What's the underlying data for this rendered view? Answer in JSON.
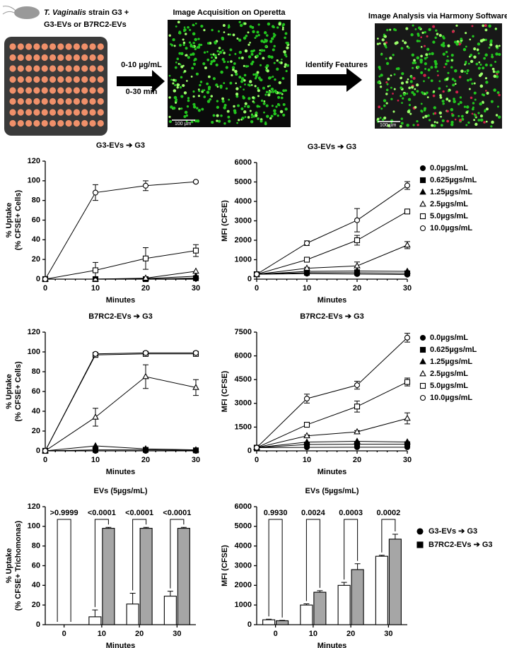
{
  "schematic": {
    "strain_italic": "T. Vaginalis",
    "strain_rest": " strain G3 +",
    "strain_line2": "G3-EVs or B7RC2-EVs",
    "dose": "0-10 µg/mL",
    "time": "0-30 min",
    "acquisition": "Image Acquisition on Operetta",
    "identify": "Identify Features",
    "analysis": "Image Analysis via Harmony Software",
    "scale_bar": "100 µm"
  },
  "chart_data": [
    {
      "type": "line",
      "title": "G3-EVs ➔ G3",
      "ylabel": [
        "% Uptake",
        "(% CFSE+ Cells)"
      ],
      "xlabel": "Minutes",
      "x": [
        0,
        10,
        20,
        30
      ],
      "xlim": [
        0,
        30
      ],
      "xticks": [
        0,
        10,
        20,
        30
      ],
      "ylim": [
        0,
        120
      ],
      "yticks": [
        0,
        20,
        40,
        60,
        80,
        100,
        120
      ],
      "series": [
        {
          "marker": "circle",
          "filled": true,
          "color": "#000000",
          "values": [
            0,
            0,
            0,
            0.5
          ]
        },
        {
          "marker": "square",
          "filled": true,
          "color": "#000000",
          "values": [
            0,
            0,
            0,
            1
          ]
        },
        {
          "marker": "triangle",
          "filled": true,
          "color": "#000000",
          "values": [
            0,
            0,
            0.5,
            3
          ]
        },
        {
          "marker": "triangle",
          "filled": false,
          "color": "#000000",
          "values": [
            0,
            0,
            1,
            8
          ]
        },
        {
          "marker": "square",
          "filled": false,
          "color": "#000000",
          "values": [
            0,
            9,
            21,
            29
          ],
          "errors": [
            0,
            8,
            11,
            6
          ]
        },
        {
          "marker": "circle",
          "filled": false,
          "color": "#000000",
          "values": [
            0,
            88,
            95,
            99
          ],
          "errors": [
            0,
            8,
            5,
            1
          ]
        }
      ]
    },
    {
      "type": "line",
      "title": "G3-EVs ➔ G3",
      "ylabel": [
        "MFI (CFSE)"
      ],
      "xlabel": "Minutes",
      "legend": "right",
      "x": [
        0,
        10,
        20,
        30
      ],
      "xlim": [
        0,
        30
      ],
      "xticks": [
        0,
        10,
        20,
        30
      ],
      "ylim": [
        0,
        6000
      ],
      "yticks": [
        0,
        1000,
        2000,
        3000,
        4000,
        5000,
        6000
      ],
      "series": [
        {
          "name": "0.0µgs/mL",
          "marker": "circle",
          "filled": true,
          "color": "#000000",
          "values": [
            250,
            280,
            260,
            230
          ]
        },
        {
          "name": "0.625µgs/mL",
          "marker": "square",
          "filled": true,
          "color": "#000000",
          "values": [
            250,
            330,
            330,
            300
          ]
        },
        {
          "name": "1.25µgs/mL",
          "marker": "triangle",
          "filled": true,
          "color": "#000000",
          "values": [
            250,
            400,
            420,
            400
          ]
        },
        {
          "name": "2.5µgs/mL",
          "marker": "triangle",
          "filled": false,
          "color": "#000000",
          "values": [
            250,
            560,
            680,
            1750
          ],
          "errors": [
            0,
            50,
            200,
            180
          ]
        },
        {
          "name": "5.0µgs/mL",
          "marker": "square",
          "filled": false,
          "color": "#000000",
          "values": [
            250,
            1000,
            2000,
            3480
          ],
          "errors": [
            0,
            50,
            250,
            50
          ]
        },
        {
          "name": "10.0µgs/mL",
          "marker": "circle",
          "filled": false,
          "color": "#000000",
          "values": [
            250,
            1850,
            3030,
            4820
          ],
          "errors": [
            0,
            120,
            600,
            200
          ]
        }
      ]
    },
    {
      "type": "line",
      "title": "B7RC2-EVs ➔ G3",
      "ylabel": [
        "% Uptake",
        "(% CFSE+ Cells)"
      ],
      "xlabel": "Minutes",
      "x": [
        0,
        10,
        20,
        30
      ],
      "xlim": [
        0,
        30
      ],
      "xticks": [
        0,
        10,
        20,
        30
      ],
      "ylim": [
        0,
        120
      ],
      "yticks": [
        0,
        20,
        40,
        60,
        80,
        100,
        120
      ],
      "series": [
        {
          "marker": "circle",
          "filled": true,
          "color": "#000000",
          "values": [
            0,
            0,
            0,
            0
          ]
        },
        {
          "marker": "square",
          "filled": true,
          "color": "#000000",
          "values": [
            0,
            1,
            1,
            0.5
          ]
        },
        {
          "marker": "triangle",
          "filled": true,
          "color": "#000000",
          "values": [
            0,
            5,
            2,
            1
          ]
        },
        {
          "marker": "triangle",
          "filled": false,
          "color": "#000000",
          "values": [
            0,
            34,
            75,
            64
          ],
          "errors": [
            0,
            9,
            12,
            8
          ]
        },
        {
          "marker": "square",
          "filled": false,
          "color": "#000000",
          "values": [
            0,
            97,
            98,
            98
          ]
        },
        {
          "marker": "circle",
          "filled": false,
          "color": "#000000",
          "values": [
            0,
            98,
            99,
            99
          ]
        }
      ]
    },
    {
      "type": "line",
      "title": "B7RC2-EVs ➔ G3",
      "ylabel": [
        "MFI (CFSE)"
      ],
      "xlabel": "Minutes",
      "legend": "right",
      "x": [
        0,
        10,
        20,
        30
      ],
      "xlim": [
        0,
        30
      ],
      "xticks": [
        0,
        10,
        20,
        30
      ],
      "ylim": [
        0,
        7500
      ],
      "yticks": [
        0,
        1500,
        3000,
        4500,
        6000,
        7500
      ],
      "series": [
        {
          "name": "0.0µgs/mL",
          "marker": "circle",
          "filled": true,
          "color": "#000000",
          "values": [
            200,
            220,
            230,
            230
          ]
        },
        {
          "name": "0.625µgs/mL",
          "marker": "square",
          "filled": true,
          "color": "#000000",
          "values": [
            200,
            400,
            420,
            420
          ]
        },
        {
          "name": "1.25µgs/mL",
          "marker": "triangle",
          "filled": true,
          "color": "#000000",
          "values": [
            200,
            550,
            600,
            560
          ]
        },
        {
          "name": "2.5µgs/mL",
          "marker": "triangle",
          "filled": false,
          "color": "#000000",
          "values": [
            200,
            950,
            1200,
            2050
          ],
          "errors": [
            0,
            50,
            80,
            350
          ]
        },
        {
          "name": "5.0µgs/mL",
          "marker": "square",
          "filled": false,
          "color": "#000000",
          "values": [
            200,
            1650,
            2800,
            4350
          ],
          "errors": [
            0,
            60,
            350,
            250
          ]
        },
        {
          "name": "10.0µgs/mL",
          "marker": "circle",
          "filled": false,
          "color": "#000000",
          "values": [
            200,
            3300,
            4150,
            7150
          ],
          "errors": [
            0,
            280,
            250,
            280
          ]
        }
      ]
    },
    {
      "type": "bar",
      "title": "EVs (5µgs/mL)",
      "ylabel": [
        "% Uptake",
        "(% CFSE+ Trichomonas)"
      ],
      "xlabel": "Minutes",
      "categories": [
        "0",
        "10",
        "20",
        "30"
      ],
      "ylim": [
        0,
        120
      ],
      "yticks": [
        0,
        20,
        40,
        60,
        80,
        100,
        120
      ],
      "annotations": [
        ">0.9999",
        "<0.0001",
        "<0.0001",
        "<0.0001"
      ],
      "series": [
        {
          "name": "G3-EVs ➔ G3",
          "marker": "circle",
          "color": "#ffffff",
          "values": [
            0,
            8,
            21,
            29
          ],
          "errors": [
            0,
            7,
            11,
            5
          ]
        },
        {
          "name": "B7RC2-EVs ➔ G3",
          "marker": "square",
          "color": "#a6a6a6",
          "values": [
            0,
            98,
            98,
            98
          ],
          "errors": [
            0,
            1,
            1,
            1
          ]
        }
      ]
    },
    {
      "type": "bar",
      "title": "EVs (5µgs/mL)",
      "ylabel": [
        "MFI (CFSE)"
      ],
      "xlabel": "Minutes",
      "legend": "right",
      "categories": [
        "0",
        "10",
        "20",
        "30"
      ],
      "ylim": [
        0,
        6000
      ],
      "yticks": [
        0,
        1000,
        2000,
        3000,
        4000,
        5000,
        6000
      ],
      "annotations": [
        "0.9930",
        "0.0024",
        "0.0003",
        "0.0002"
      ],
      "series": [
        {
          "name": "G3-EVs ➔ G3",
          "marker": "circle",
          "color": "#ffffff",
          "values": [
            250,
            1000,
            2000,
            3480
          ],
          "errors": [
            30,
            60,
            150,
            50
          ]
        },
        {
          "name": "B7RC2-EVs ➔ G3",
          "marker": "square",
          "color": "#a6a6a6",
          "values": [
            200,
            1650,
            2800,
            4350
          ],
          "errors": [
            20,
            80,
            300,
            250
          ]
        }
      ]
    }
  ]
}
